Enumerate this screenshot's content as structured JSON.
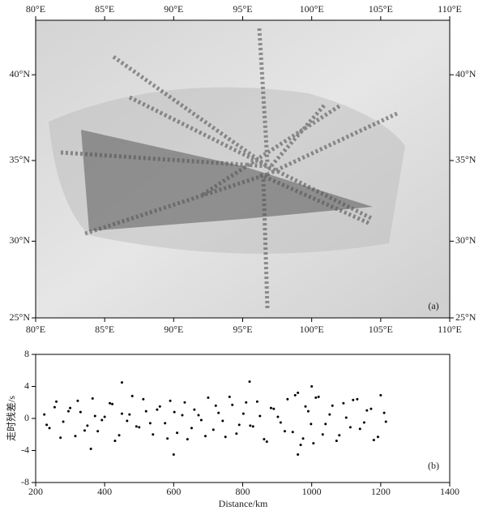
{
  "chart_data": [
    {
      "type": "map",
      "panel_label": "(a)",
      "xlim": [
        80,
        110
      ],
      "ylim": [
        25,
        43
      ],
      "xticks": [
        {
          "value": 80,
          "label": "80°E"
        },
        {
          "value": 85,
          "label": "85°E"
        },
        {
          "value": 90,
          "label": "90°E"
        },
        {
          "value": 95,
          "label": "95°E"
        },
        {
          "value": 100,
          "label": "100°E"
        },
        {
          "value": 105,
          "label": "105°E"
        },
        {
          "value": 110,
          "label": "110°E"
        }
      ],
      "yticks": [
        {
          "value": 25,
          "label": "25°N"
        },
        {
          "value": 30,
          "label": "30°N"
        },
        {
          "value": 35,
          "label": "35°N"
        },
        {
          "value": 40,
          "label": "40°N"
        }
      ]
    },
    {
      "type": "scatter",
      "panel_label": "(b)",
      "xlabel": "Distance/km",
      "ylabel": "走时残差/s",
      "xlim": [
        200,
        1400
      ],
      "ylim": [
        -8,
        8
      ],
      "xticks": [
        200,
        400,
        600,
        800,
        1000,
        1200,
        1400
      ],
      "yticks": [
        -8,
        -4,
        0,
        4,
        8
      ],
      "series": [
        {
          "color": "#000000",
          "x": [
            225,
            240,
            260,
            280,
            300,
            315,
            330,
            350,
            365,
            380,
            400,
            415,
            430,
            450,
            465,
            480,
            500,
            520,
            540,
            560,
            575,
            590,
            610,
            625,
            640,
            660,
            680,
            700,
            715,
            730,
            750,
            770,
            790,
            810,
            830,
            850,
            870,
            890,
            910,
            930,
            945,
            960,
            975,
            990,
            1005,
            1020,
            1040,
            1060,
            1080,
            1100,
            1120,
            1140,
            1160,
            1180,
            1200,
            1215,
            232,
            255,
            272,
            295,
            322,
            342,
            372,
            392,
            422,
            442,
            472,
            492,
            512,
            532,
            552,
            582,
            602,
            632,
            652,
            672,
            692,
            722,
            742,
            762,
            782,
            802,
            822,
            842,
            862,
            882,
            902,
            922,
            952,
            968,
            982,
            998,
            1012,
            1032,
            1052,
            1072,
            1092,
            1112,
            1132,
            1152,
            1172,
            1192,
            1210,
            450,
            820,
            600,
            960,
            1000,
            360
          ],
          "y": [
            0.5,
            -1.2,
            2.1,
            -0.4,
            1.3,
            -2.2,
            0.8,
            -0.9,
            2.5,
            -1.6,
            0.2,
            1.9,
            -2.8,
            0.6,
            -0.3,
            2.8,
            -1.1,
            0.9,
            -2.0,
            1.5,
            -0.6,
            2.2,
            -1.8,
            0.4,
            -2.6,
            1.1,
            -0.2,
            2.6,
            -1.4,
            0.7,
            -2.3,
            1.7,
            -0.8,
            2.0,
            -1.0,
            0.3,
            -2.9,
            1.2,
            -0.5,
            2.4,
            -1.7,
            3.2,
            -2.5,
            0.9,
            -3.1,
            2.7,
            -0.7,
            1.6,
            -2.1,
            0.1,
            2.3,
            -1.3,
            1.0,
            -2.7,
            2.9,
            -0.4,
            -0.8,
            1.4,
            -2.4,
            0.9,
            2.2,
            -1.5,
            0.3,
            -0.2,
            1.8,
            -2.1,
            0.5,
            -1.0,
            2.4,
            -0.6,
            1.1,
            -2.5,
            0.8,
            2.0,
            -1.2,
            0.4,
            -2.2,
            1.6,
            -0.3,
            2.7,
            -1.9,
            0.6,
            -0.9,
            2.1,
            -2.6,
            1.3,
            0.2,
            -1.6,
            2.9,
            -3.3,
            1.5,
            -0.7,
            2.6,
            -2.0,
            0.5,
            -2.8,
            1.9,
            -1.1,
            2.4,
            -0.5,
            1.2,
            -2.3,
            0.7,
            4.5,
            4.6,
            -4.5,
            -4.5,
            4.0,
            -3.8
          ]
        }
      ]
    }
  ]
}
